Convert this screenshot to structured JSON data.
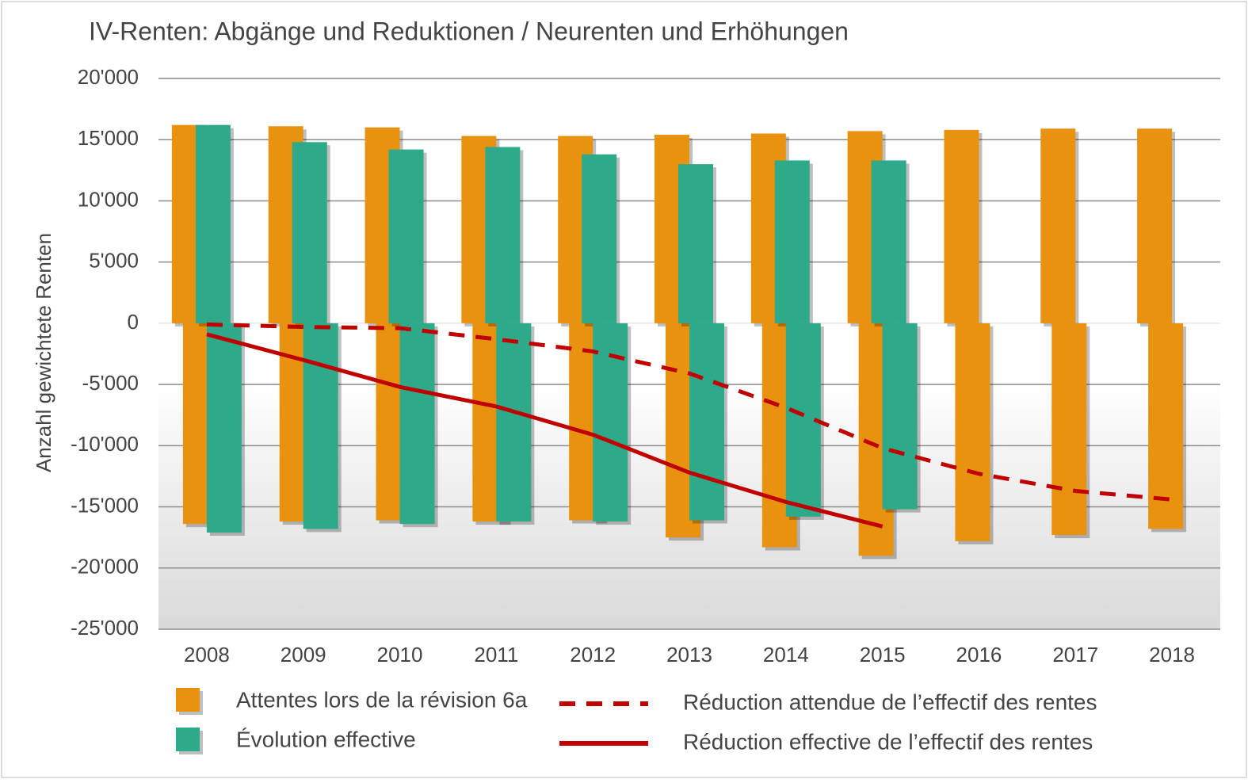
{
  "chart_data": {
    "type": "bar",
    "title": "IV-Renten: Abgänge und Reduktionen / Neurenten und Erhöhungen",
    "y_label": "Anzahl gewichtete Renten",
    "categories": [
      "2008",
      "2009",
      "2010",
      "2011",
      "2012",
      "2013",
      "2014",
      "2015",
      "2016",
      "2017",
      "2018"
    ],
    "series": [
      {
        "name": "Attentes lors de la révision 6a",
        "color": "#e8920f",
        "type": "bar",
        "values": [
          16200,
          16100,
          16000,
          15300,
          15300,
          15400,
          15500,
          15700,
          15800,
          15900,
          15900
        ],
        "negative_values": [
          -16400,
          -16200,
          -16100,
          -16200,
          -16100,
          -17500,
          -18300,
          -19000,
          -17800,
          -17300,
          -16800
        ]
      },
      {
        "name": "Évolution effective",
        "color": "#2eaa8a",
        "type": "bar",
        "values": [
          16200,
          14800,
          14200,
          14400,
          13800,
          13000,
          13300,
          13300,
          null,
          null,
          null
        ],
        "negative_values": [
          -17100,
          -16800,
          -16400,
          -16200,
          -16200,
          -16100,
          -15800,
          -15200,
          null,
          null,
          null
        ]
      },
      {
        "name": "Réduction attendue de l’effectif des rentes",
        "color": "#c00000",
        "type": "line",
        "dashed": true,
        "values": [
          -100,
          -300,
          -400,
          -1300,
          -2300,
          -4100,
          -6900,
          -10200,
          -12300,
          -13700,
          -14400
        ]
      },
      {
        "name": "Réduction effective de l’effectif des rentes",
        "color": "#c00000",
        "type": "line",
        "dashed": false,
        "values": [
          -900,
          -3000,
          -5200,
          -6800,
          -9100,
          -12200,
          -14600,
          -16600,
          null,
          null,
          null
        ]
      }
    ],
    "ylim": [
      -25000,
      20000
    ],
    "yticks": [
      {
        "value": 20000,
        "label": "20'000"
      },
      {
        "value": 15000,
        "label": "15'000"
      },
      {
        "value": 10000,
        "label": "10'000"
      },
      {
        "value": 5000,
        "label": "5'000"
      },
      0,
      {
        "value": -5000,
        "label": "-5'000"
      },
      {
        "value": -10000,
        "label": "-10'000"
      },
      {
        "value": -15000,
        "label": "-15'000"
      },
      {
        "value": -20000,
        "label": "-20'000"
      },
      {
        "value": -25000,
        "label": "-25'000"
      }
    ],
    "grid": true
  }
}
